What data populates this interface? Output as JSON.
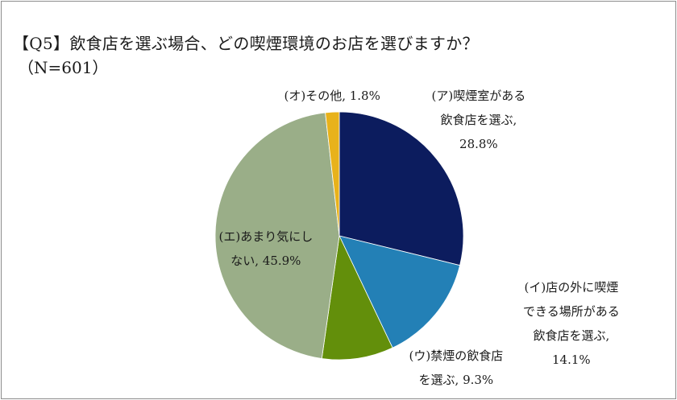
{
  "title": "【Q5】飲食店を選ぶ場合、どの喫煙環境のお店を選びますか？",
  "subtitle": "（N=601）",
  "chart_data": {
    "type": "pie",
    "title": "【Q5】飲食店を選ぶ場合、どの喫煙環境のお店を選びますか？",
    "subtitle": "（N=601）",
    "start": "12 o'clock",
    "direction": "clockwise",
    "slices": [
      {
        "label": "(ア)喫煙室がある飲食店を選ぶ",
        "value": 28.8,
        "text": "28.8%",
        "color": "#0c1c5e",
        "label_lines": [
          "(ア)喫煙室がある",
          "飲食店を選ぶ,",
          "28.8%"
        ]
      },
      {
        "label": "(イ)店の外に喫煙できる場所がある飲食店を選ぶ",
        "value": 14.1,
        "text": "14.1%",
        "color": "#2380b6",
        "label_lines": [
          "(イ)店の外に喫煙",
          "できる場所がある",
          "飲食店を選ぶ,",
          "14.1%"
        ]
      },
      {
        "label": "(ウ)禁煙の飲食店を選ぶ",
        "value": 9.3,
        "text": "9.3%",
        "color": "#638f0b",
        "label_lines": [
          "(ウ)禁煙の飲食店",
          "を選ぶ, 9.3%"
        ]
      },
      {
        "label": "(エ)あまり気にしない",
        "value": 45.9,
        "text": "45.9%",
        "color": "#9aae88",
        "label_lines": [
          "(エ)あまり気にし",
          "ない, 45.9%"
        ]
      },
      {
        "label": "(オ)その他",
        "value": 1.8,
        "text": "1.8%",
        "color": "#e8b21b",
        "label_lines": [
          "(オ)その他, 1.8%"
        ]
      }
    ]
  }
}
